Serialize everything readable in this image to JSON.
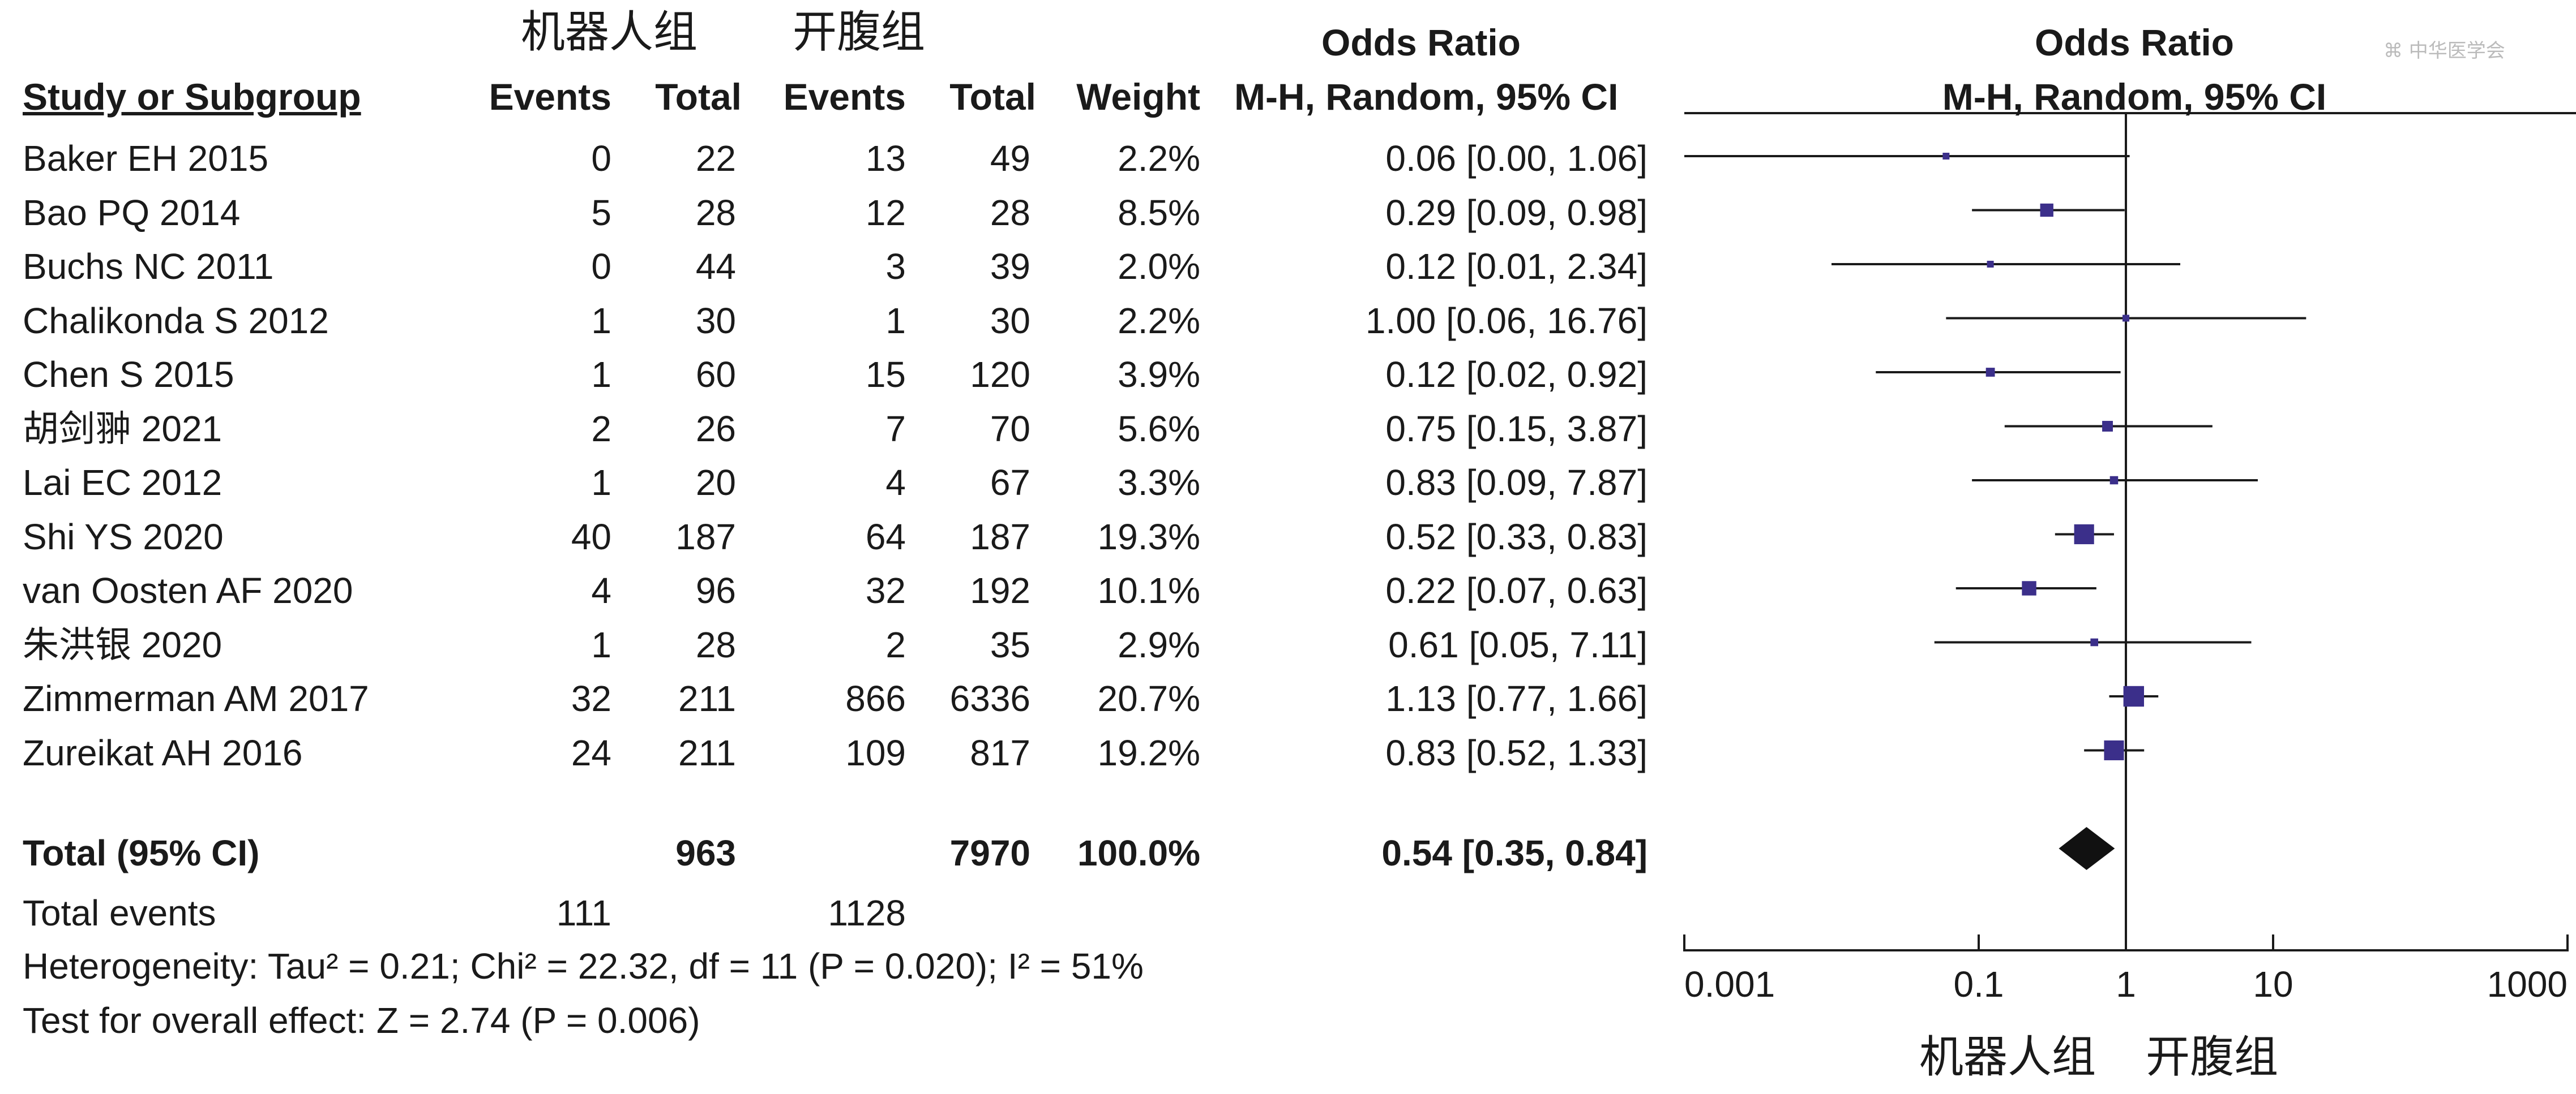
{
  "group_labels": {
    "robot": "机器人组",
    "open": "开腹组"
  },
  "headers": {
    "study": "Study or Subgroup",
    "events": "Events",
    "total": "Total",
    "weight": "Weight",
    "or_title": "Odds Ratio",
    "or_method": "M-H, Random, 95% CI",
    "plot_title": "Odds Ratio",
    "plot_method": "M-H, Random, 95% CI"
  },
  "studies": [
    {
      "name": "Baker EH 2015",
      "robot_events": "0",
      "robot_total": "22",
      "open_events": "13",
      "open_total": "49",
      "weight": "2.2%",
      "ci_text": "0.06 [0.00, 1.06]"
    },
    {
      "name": "Bao PQ 2014",
      "robot_events": "5",
      "robot_total": "28",
      "open_events": "12",
      "open_total": "28",
      "weight": "8.5%",
      "ci_text": "0.29 [0.09, 0.98]"
    },
    {
      "name": "Buchs NC 2011",
      "robot_events": "0",
      "robot_total": "44",
      "open_events": "3",
      "open_total": "39",
      "weight": "2.0%",
      "ci_text": "0.12 [0.01, 2.34]"
    },
    {
      "name": "Chalikonda S 2012",
      "robot_events": "1",
      "robot_total": "30",
      "open_events": "1",
      "open_total": "30",
      "weight": "2.2%",
      "ci_text": "1.00 [0.06, 16.76]"
    },
    {
      "name": "Chen S 2015",
      "robot_events": "1",
      "robot_total": "60",
      "open_events": "15",
      "open_total": "120",
      "weight": "3.9%",
      "ci_text": "0.12 [0.02, 0.92]"
    },
    {
      "name": "胡剑翀 2021",
      "robot_events": "2",
      "robot_total": "26",
      "open_events": "7",
      "open_total": "70",
      "weight": "5.6%",
      "ci_text": "0.75 [0.15, 3.87]"
    },
    {
      "name": "Lai EC 2012",
      "robot_events": "1",
      "robot_total": "20",
      "open_events": "4",
      "open_total": "67",
      "weight": "3.3%",
      "ci_text": "0.83 [0.09, 7.87]"
    },
    {
      "name": "Shi YS 2020",
      "robot_events": "40",
      "robot_total": "187",
      "open_events": "64",
      "open_total": "187",
      "weight": "19.3%",
      "ci_text": "0.52 [0.33, 0.83]"
    },
    {
      "name": "van Oosten AF 2020",
      "robot_events": "4",
      "robot_total": "96",
      "open_events": "32",
      "open_total": "192",
      "weight": "10.1%",
      "ci_text": "0.22 [0.07, 0.63]"
    },
    {
      "name": "朱洪银 2020",
      "robot_events": "1",
      "robot_total": "28",
      "open_events": "2",
      "open_total": "35",
      "weight": "2.9%",
      "ci_text": "0.61 [0.05, 7.11]"
    },
    {
      "name": "Zimmerman AM 2017",
      "robot_events": "32",
      "robot_total": "211",
      "open_events": "866",
      "open_total": "6336",
      "weight": "20.7%",
      "ci_text": "1.13 [0.77, 1.66]"
    },
    {
      "name": "Zureikat AH 2016",
      "robot_events": "24",
      "robot_total": "211",
      "open_events": "109",
      "open_total": "817",
      "weight": "19.2%",
      "ci_text": "0.83 [0.52, 1.33]"
    }
  ],
  "total": {
    "label": "Total (95% CI)",
    "robot_total": "963",
    "open_total": "7970",
    "weight": "100.0%",
    "ci_text": "0.54 [0.35, 0.84]"
  },
  "total_events": {
    "label": "Total events",
    "robot": "111",
    "open": "1128"
  },
  "heterogeneity": "Heterogeneity: Tau² = 0.21; Chi² = 22.32, df = 11 (P = 0.020); I² = 51%",
  "overall_effect": "Test for overall effect: Z = 2.74 (P = 0.006)",
  "watermark": "⌘ 中华医学会",
  "chart_data": {
    "type": "forest",
    "scale": "log",
    "xlim": [
      0.001,
      1000
    ],
    "ticks": [
      0.001,
      0.1,
      1,
      10,
      1000
    ],
    "tick_labels": [
      "0.001",
      "0.1",
      "1",
      "10",
      "1000"
    ],
    "null_line": 1,
    "left_label": "机器人组",
    "right_label": "开腹组",
    "marker_color": "#3b2f8a",
    "line_color": "#1a1a1a",
    "points": [
      {
        "or": 0.06,
        "lo": 0.001,
        "hi": 1.06,
        "weight": 2.2
      },
      {
        "or": 0.29,
        "lo": 0.09,
        "hi": 0.98,
        "weight": 8.5
      },
      {
        "or": 0.12,
        "lo": 0.01,
        "hi": 2.34,
        "weight": 2.0
      },
      {
        "or": 1.0,
        "lo": 0.06,
        "hi": 16.76,
        "weight": 2.2
      },
      {
        "or": 0.12,
        "lo": 0.02,
        "hi": 0.92,
        "weight": 3.9
      },
      {
        "or": 0.75,
        "lo": 0.15,
        "hi": 3.87,
        "weight": 5.6
      },
      {
        "or": 0.83,
        "lo": 0.09,
        "hi": 7.87,
        "weight": 3.3
      },
      {
        "or": 0.52,
        "lo": 0.33,
        "hi": 0.83,
        "weight": 19.3
      },
      {
        "or": 0.22,
        "lo": 0.07,
        "hi": 0.63,
        "weight": 10.1
      },
      {
        "or": 0.61,
        "lo": 0.05,
        "hi": 7.11,
        "weight": 2.9
      },
      {
        "or": 1.13,
        "lo": 0.77,
        "hi": 1.66,
        "weight": 20.7
      },
      {
        "or": 0.83,
        "lo": 0.52,
        "hi": 1.33,
        "weight": 19.2
      }
    ],
    "pooled": {
      "or": 0.54,
      "lo": 0.35,
      "hi": 0.84
    }
  }
}
